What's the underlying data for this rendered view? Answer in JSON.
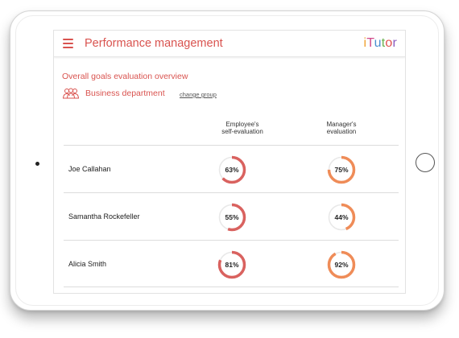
{
  "app": {
    "title": "Performance management",
    "logo_letters": [
      "i",
      "T",
      "u",
      "t",
      "o",
      "r"
    ],
    "accent_color": "#d9534f"
  },
  "overview": {
    "title": "Overall goals evaluation overview",
    "group_name": "Business department",
    "change_group_label": "change group",
    "group_icon": "people-group-icon"
  },
  "table": {
    "headers": {
      "self": [
        "Employee's",
        "self-evaluation"
      ],
      "manager": [
        "Manager's",
        "evaluation"
      ]
    },
    "rows": [
      {
        "name": "Joe Callahan",
        "self": 63,
        "self_label": "63%",
        "manager": 75,
        "manager_label": "75%"
      },
      {
        "name": "Samantha Rockefeller",
        "self": 55,
        "self_label": "55%",
        "manager": 44,
        "manager_label": "44%"
      },
      {
        "name": "Alicia Smith",
        "self": 81,
        "self_label": "81%",
        "manager": 92,
        "manager_label": "92%"
      }
    ],
    "colors": {
      "self_ring": "#d9625f",
      "manager_ring": "#ef8c58",
      "track": "#e8e8e8"
    }
  },
  "device": {
    "type": "tablet",
    "home_button_icon": "home-button-icon",
    "camera_icon": "camera-icon"
  }
}
